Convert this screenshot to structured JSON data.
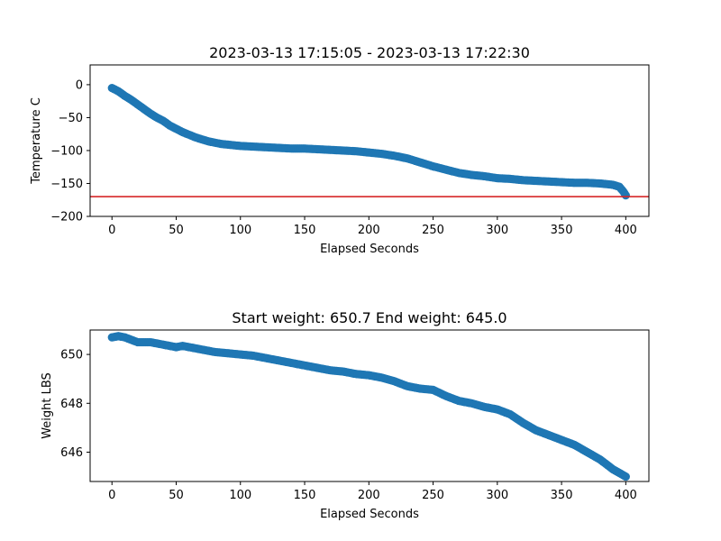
{
  "chart_data": [
    {
      "type": "scatter",
      "title": "2023-03-13 17:15:05 - 2023-03-13 17:22:30",
      "xlabel": "Elapsed Seconds",
      "ylabel": "Temperature C",
      "xlim": [
        -17,
        418
      ],
      "ylim": [
        -200,
        30
      ],
      "xticks": [
        0,
        50,
        100,
        150,
        200,
        250,
        300,
        350,
        400
      ],
      "yticks": [
        -200,
        -150,
        -100,
        -50,
        0
      ],
      "tick_labels_y": [
        "−200",
        "−150",
        "−100",
        "−50",
        "0"
      ],
      "hline": {
        "y": -170,
        "color": "#d62728"
      },
      "marker_color": "#1f77b4",
      "points": [
        [
          0,
          -5
        ],
        [
          5,
          -10
        ],
        [
          10,
          -17
        ],
        [
          15,
          -23
        ],
        [
          20,
          -30
        ],
        [
          25,
          -37
        ],
        [
          30,
          -44
        ],
        [
          35,
          -50
        ],
        [
          40,
          -55
        ],
        [
          45,
          -62
        ],
        [
          50,
          -67
        ],
        [
          55,
          -72
        ],
        [
          60,
          -76
        ],
        [
          65,
          -80
        ],
        [
          70,
          -83
        ],
        [
          75,
          -86
        ],
        [
          80,
          -88
        ],
        [
          85,
          -90
        ],
        [
          90,
          -91
        ],
        [
          95,
          -92
        ],
        [
          100,
          -93
        ],
        [
          110,
          -94
        ],
        [
          120,
          -95
        ],
        [
          130,
          -96
        ],
        [
          140,
          -97
        ],
        [
          150,
          -97
        ],
        [
          160,
          -98
        ],
        [
          170,
          -99
        ],
        [
          180,
          -100
        ],
        [
          190,
          -101
        ],
        [
          200,
          -103
        ],
        [
          210,
          -105
        ],
        [
          220,
          -108
        ],
        [
          230,
          -112
        ],
        [
          240,
          -118
        ],
        [
          250,
          -124
        ],
        [
          260,
          -129
        ],
        [
          270,
          -134
        ],
        [
          280,
          -137
        ],
        [
          290,
          -139
        ],
        [
          300,
          -142
        ],
        [
          310,
          -143
        ],
        [
          320,
          -145
        ],
        [
          330,
          -146
        ],
        [
          340,
          -147
        ],
        [
          350,
          -148
        ],
        [
          360,
          -149
        ],
        [
          370,
          -149
        ],
        [
          380,
          -150
        ],
        [
          390,
          -152
        ],
        [
          395,
          -155
        ],
        [
          398,
          -162
        ],
        [
          400,
          -168
        ]
      ]
    },
    {
      "type": "scatter",
      "title": "Start weight: 650.7 End weight: 645.0",
      "xlabel": "Elapsed Seconds",
      "ylabel": "Weight LBS",
      "xlim": [
        -17,
        418
      ],
      "ylim": [
        644.8,
        651.0
      ],
      "xticks": [
        0,
        50,
        100,
        150,
        200,
        250,
        300,
        350,
        400
      ],
      "yticks": [
        646,
        648,
        650
      ],
      "tick_labels_y": [
        "646",
        "648",
        "650"
      ],
      "marker_color": "#1f77b4",
      "points": [
        [
          0,
          650.7
        ],
        [
          5,
          650.75
        ],
        [
          10,
          650.7
        ],
        [
          15,
          650.6
        ],
        [
          20,
          650.5
        ],
        [
          30,
          650.5
        ],
        [
          40,
          650.4
        ],
        [
          50,
          650.3
        ],
        [
          55,
          650.35
        ],
        [
          60,
          650.3
        ],
        [
          70,
          650.2
        ],
        [
          80,
          650.1
        ],
        [
          90,
          650.05
        ],
        [
          100,
          650.0
        ],
        [
          110,
          649.95
        ],
        [
          120,
          649.85
        ],
        [
          130,
          649.75
        ],
        [
          140,
          649.65
        ],
        [
          150,
          649.55
        ],
        [
          160,
          649.45
        ],
        [
          170,
          649.35
        ],
        [
          180,
          649.3
        ],
        [
          190,
          649.2
        ],
        [
          200,
          649.15
        ],
        [
          210,
          649.05
        ],
        [
          220,
          648.9
        ],
        [
          230,
          648.7
        ],
        [
          240,
          648.6
        ],
        [
          250,
          648.55
        ],
        [
          260,
          648.3
        ],
        [
          270,
          648.1
        ],
        [
          280,
          648.0
        ],
        [
          290,
          647.85
        ],
        [
          300,
          647.75
        ],
        [
          310,
          647.55
        ],
        [
          320,
          647.2
        ],
        [
          330,
          646.9
        ],
        [
          340,
          646.7
        ],
        [
          350,
          646.5
        ],
        [
          360,
          646.3
        ],
        [
          370,
          646.0
        ],
        [
          380,
          645.7
        ],
        [
          390,
          645.3
        ],
        [
          400,
          645.0
        ]
      ]
    }
  ]
}
